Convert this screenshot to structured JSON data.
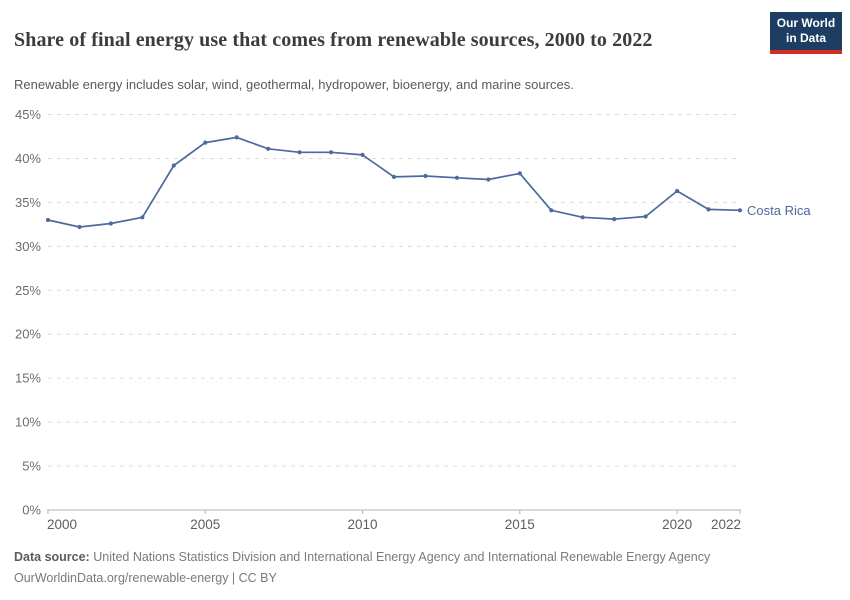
{
  "header": {
    "title": "Share of final energy use that comes from renewable sources, 2000 to 2022",
    "subtitle": "Renewable energy includes solar, wind, geothermal, hydropower, bioenergy, and marine sources.",
    "logo_line1": "Our World",
    "logo_line2": "in Data"
  },
  "chart_data": {
    "type": "line",
    "title": "Share of final energy use that comes from renewable sources, 2000 to 2022",
    "x": [
      2000,
      2001,
      2002,
      2003,
      2004,
      2005,
      2006,
      2007,
      2008,
      2009,
      2010,
      2011,
      2012,
      2013,
      2014,
      2015,
      2016,
      2017,
      2018,
      2019,
      2020,
      2021,
      2022
    ],
    "series": [
      {
        "name": "Costa Rica",
        "color": "#4C6A9D",
        "values": [
          33.0,
          32.2,
          32.6,
          33.3,
          39.2,
          41.8,
          42.4,
          41.1,
          40.7,
          40.7,
          40.4,
          37.9,
          38.0,
          37.8,
          37.6,
          38.3,
          34.1,
          33.3,
          33.1,
          33.4,
          36.3,
          34.2,
          34.1
        ]
      }
    ],
    "xlabel": "",
    "ylabel": "",
    "ylim": [
      0,
      45
    ],
    "y_ticks": [
      0,
      5,
      10,
      15,
      20,
      25,
      30,
      35,
      40,
      45
    ],
    "y_tick_suffix": "%",
    "x_ticks": [
      2000,
      2005,
      2010,
      2015,
      2020,
      2022
    ],
    "grid": "horizontal dashed",
    "legend_position": "end-of-line label"
  },
  "footer": {
    "datasource_label": "Data source:",
    "datasource_text": "United Nations Statistics Division and International Energy Agency and International Renewable Energy Agency",
    "license_line": "OurWorldinData.org/renewable-energy | CC BY"
  },
  "colors": {
    "series_line": "#4C6A9D",
    "logo_bg": "#1d3d63",
    "logo_accent": "#d12d23",
    "gridline": "#dcdcdc",
    "axis": "#b3b3b3"
  }
}
